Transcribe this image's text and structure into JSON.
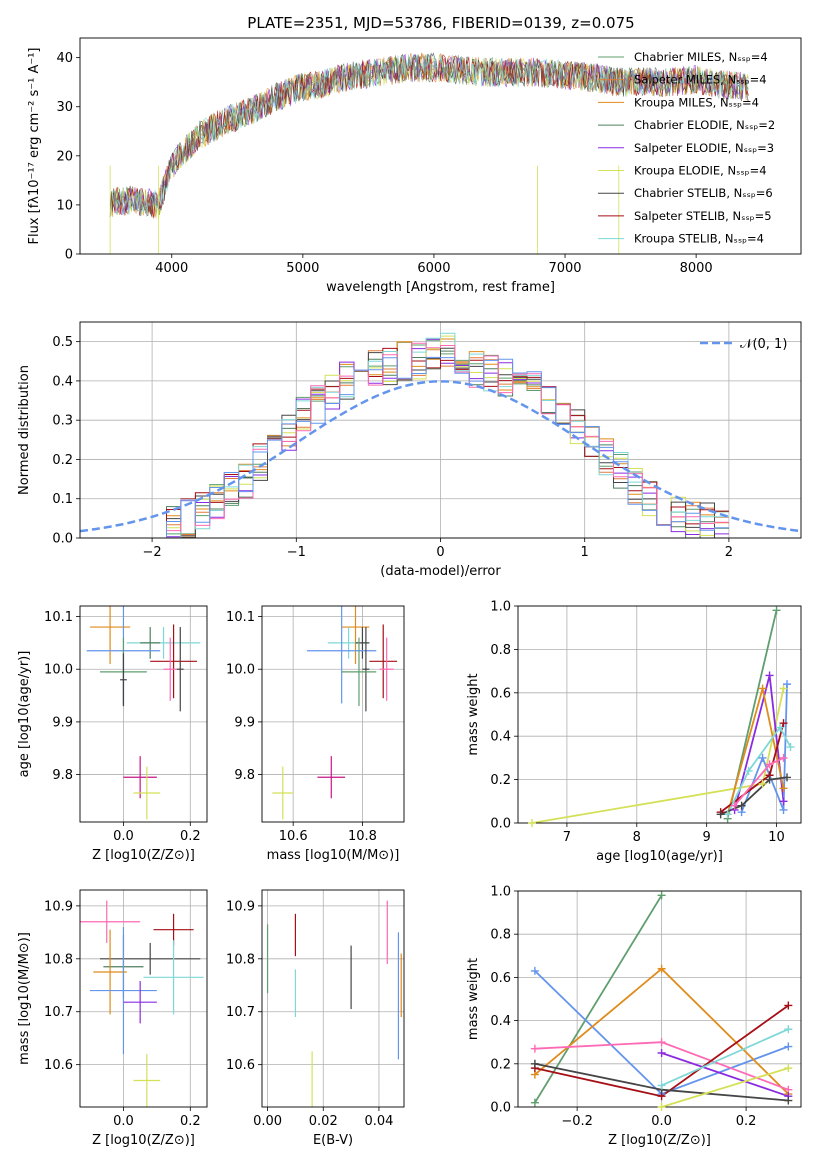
{
  "figure_title": "PLATE=2351, MJD=53786, FIBERID=0139, z=0.075",
  "series_colors": [
    "#5f9e6e",
    "#e07b39",
    "#e08b1a",
    "#4f7f5e",
    "#8a2be2",
    "#d4e157",
    "#454545",
    "#a50f15",
    "#7fd7d7",
    "#ff69b4",
    "#6495ed"
  ],
  "chart_data": [
    {
      "type": "line",
      "name": "spectrum",
      "xlabel": "wavelength [Angstrom, rest frame]",
      "ylabel": "Flux [fλ10⁻¹⁷ erg cm⁻² s⁻¹ A⁻¹]",
      "xlim": [
        3300,
        8800
      ],
      "ylim": [
        0,
        44
      ],
      "xticks": [
        4000,
        5000,
        6000,
        7000,
        8000
      ],
      "yticks": [
        0,
        10,
        20,
        30,
        40
      ],
      "grid": false,
      "legend_position": "upper right",
      "continuum": {
        "x": [
          3530,
          3700,
          3900,
          4000,
          4200,
          4400,
          4600,
          4800,
          5000,
          5200,
          5400,
          5600,
          5800,
          6000,
          6200,
          6400,
          6600,
          6800,
          7000,
          7200,
          7400,
          7600,
          7800,
          8000,
          8200,
          8400
        ],
        "y": [
          10.5,
          11,
          10,
          18,
          24,
          27,
          29,
          32,
          34,
          35,
          36.5,
          37,
          38,
          38,
          37.5,
          37,
          37,
          37,
          36.5,
          36,
          35,
          35,
          35,
          35.5,
          34.5,
          34
        ]
      },
      "series": [
        {
          "name": "Chabrier MILES, N_SSP=4",
          "color": "#5f9e6e"
        },
        {
          "name": "Salpeter MILES, N_SSP=4",
          "color": "#e07b39"
        },
        {
          "name": "Kroupa MILES, N_SSP=4",
          "color": "#e08b1a"
        },
        {
          "name": "Chabrier ELODIE, N_SSP=2",
          "color": "#4f7f5e"
        },
        {
          "name": "Salpeter ELODIE, N_SSP=3",
          "color": "#8a2be2"
        },
        {
          "name": "Kroupa ELODIE, N_SSP=4",
          "color": "#d4e157"
        },
        {
          "name": "Chabrier STELIB, N_SSP=6",
          "color": "#454545"
        },
        {
          "name": "Salpeter STELIB, N_SSP=5",
          "color": "#a50f15"
        },
        {
          "name": "Kroupa STELIB, N_SSP=4",
          "color": "#7fd7d7"
        }
      ]
    },
    {
      "type": "histogram",
      "name": "residuals",
      "xlabel": "(data-model)/error",
      "ylabel": "Normed distribution",
      "xlim": [
        -2.5,
        2.5
      ],
      "ylim": [
        0,
        0.55
      ],
      "xticks": [
        -2,
        -1,
        0,
        1,
        2
      ],
      "yticks": [
        0.0,
        0.1,
        0.2,
        0.3,
        0.4,
        0.5
      ],
      "grid": true,
      "bin_width": 0.1,
      "legend": "N(0,1)",
      "legend_position": "upper right",
      "reference_curve": "gaussian N(0,1)",
      "envelope": [
        0.03,
        0.04,
        0.05,
        0.07,
        0.09,
        0.12,
        0.15,
        0.19,
        0.23,
        0.27,
        0.31,
        0.34,
        0.37,
        0.4,
        0.42,
        0.43,
        0.44,
        0.45,
        0.45,
        0.46,
        0.48,
        0.44,
        0.43,
        0.42,
        0.41,
        0.4,
        0.38,
        0.36,
        0.32,
        0.28,
        0.25,
        0.21,
        0.17,
        0.13,
        0.1,
        0.08,
        0.06,
        0.05,
        0.04,
        0.03
      ]
    },
    {
      "type": "errorbar",
      "name": "age-vs-Z",
      "xlabel": "Z [log10(Z/Z⊙)]",
      "ylabel": "age  [log10(age/yr)]",
      "xlim": [
        -0.13,
        0.25
      ],
      "ylim": [
        9.71,
        10.12
      ],
      "xticks": [
        0.0,
        0.2
      ],
      "yticks": [
        9.8,
        9.9,
        10.0,
        10.1
      ],
      "grid": true,
      "points": [
        {
          "x": -0.04,
          "y": 10.08,
          "xerr": 0.06,
          "yerr": 0.07,
          "color": "#e08b1a"
        },
        {
          "x": 0.12,
          "y": 10.05,
          "xerr": 0.11,
          "yerr": 0.03,
          "color": "#7fd7d7"
        },
        {
          "x": 0.08,
          "y": 10.05,
          "xerr": 0.03,
          "yerr": 0.03,
          "color": "#4f7f5e"
        },
        {
          "x": 0.0,
          "y": 10.035,
          "xerr": 0.11,
          "yerr": 0.1,
          "color": "#6495ed"
        },
        {
          "x": 0.15,
          "y": 10.015,
          "xerr": 0.07,
          "yerr": 0.07,
          "color": "#a50f15"
        },
        {
          "x": 0.14,
          "y": 10.0,
          "xerr": 0.02,
          "yerr": 0.06,
          "color": "#ff69b4"
        },
        {
          "x": 0.17,
          "y": 10.0,
          "xerr": 0.01,
          "yerr": 0.08,
          "color": "#454545"
        },
        {
          "x": 0.0,
          "y": 9.995,
          "xerr": 0.07,
          "yerr": 0.065,
          "color": "#5f9e6e"
        },
        {
          "x": 0.0,
          "y": 9.98,
          "xerr": 0.01,
          "yerr": 0.05,
          "color": "#454545"
        },
        {
          "x": 0.05,
          "y": 9.795,
          "xerr": 0.05,
          "yerr": 0.04,
          "color": "#c71585"
        },
        {
          "x": 0.07,
          "y": 9.765,
          "xerr": 0.04,
          "yerr": 0.05,
          "color": "#d4e157"
        }
      ]
    },
    {
      "type": "errorbar",
      "name": "age-vs-mass",
      "xlabel": "mass [log10(M/M⊙)]",
      "ylabel": "",
      "xlim": [
        10.51,
        10.92
      ],
      "ylim": [
        9.71,
        10.12
      ],
      "xticks": [
        10.6,
        10.8
      ],
      "yticks": [
        9.8,
        9.9,
        10.0,
        10.1
      ],
      "grid": true,
      "points": [
        {
          "x": 10.78,
          "y": 10.08,
          "xerr": 0.04,
          "yerr": 0.07,
          "color": "#e08b1a"
        },
        {
          "x": 10.76,
          "y": 10.05,
          "xerr": 0.06,
          "yerr": 0.03,
          "color": "#7fd7d7"
        },
        {
          "x": 10.8,
          "y": 10.05,
          "xerr": 0.02,
          "yerr": 0.03,
          "color": "#454545"
        },
        {
          "x": 10.74,
          "y": 10.035,
          "xerr": 0.1,
          "yerr": 0.1,
          "color": "#6495ed"
        },
        {
          "x": 10.86,
          "y": 10.015,
          "xerr": 0.04,
          "yerr": 0.07,
          "color": "#a50f15"
        },
        {
          "x": 10.87,
          "y": 10.0,
          "xerr": 0.02,
          "yerr": 0.06,
          "color": "#ff69b4"
        },
        {
          "x": 10.81,
          "y": 10.0,
          "xerr": 0.01,
          "yerr": 0.08,
          "color": "#454545"
        },
        {
          "x": 10.79,
          "y": 9.995,
          "xerr": 0.05,
          "yerr": 0.065,
          "color": "#5f9e6e"
        },
        {
          "x": 10.71,
          "y": 9.795,
          "xerr": 0.04,
          "yerr": 0.04,
          "color": "#c71585"
        },
        {
          "x": 10.57,
          "y": 9.765,
          "xerr": 0.03,
          "yerr": 0.05,
          "color": "#d4e157"
        }
      ]
    },
    {
      "type": "line",
      "name": "mass-weight-vs-age",
      "xlabel": "age  [log10(age/yr)]",
      "ylabel": "mass weight",
      "xlim": [
        6.3,
        10.35
      ],
      "ylim": [
        0,
        1.0
      ],
      "xticks": [
        7,
        8,
        9,
        10
      ],
      "yticks": [
        0.0,
        0.2,
        0.4,
        0.6,
        0.8,
        1.0
      ],
      "grid": true,
      "series": [
        {
          "color": "#5f9e6e",
          "x": [
            9.3,
            10.0
          ],
          "y": [
            0.02,
            0.98
          ]
        },
        {
          "color": "#d4e157",
          "x": [
            6.5,
            9.8,
            10.1
          ],
          "y": [
            0.0,
            0.18,
            0.62
          ]
        },
        {
          "color": "#8a2be2",
          "x": [
            9.4,
            9.9,
            10.1
          ],
          "y": [
            0.06,
            0.68,
            0.1
          ]
        },
        {
          "color": "#e08b1a",
          "x": [
            9.3,
            9.8,
            10.1
          ],
          "y": [
            0.04,
            0.62,
            0.16
          ]
        },
        {
          "color": "#6495ed",
          "x": [
            9.5,
            9.8,
            10.1,
            10.15
          ],
          "y": [
            0.05,
            0.3,
            0.06,
            0.64
          ]
        },
        {
          "color": "#a50f15",
          "x": [
            9.2,
            9.9,
            10.1
          ],
          "y": [
            0.05,
            0.22,
            0.46
          ]
        },
        {
          "color": "#7fd7d7",
          "x": [
            9.3,
            9.6,
            10.05,
            10.2
          ],
          "y": [
            0.04,
            0.24,
            0.44,
            0.35
          ]
        },
        {
          "color": "#ff69b4",
          "x": [
            9.4,
            9.9,
            10.1
          ],
          "y": [
            0.08,
            0.27,
            0.3
          ]
        },
        {
          "color": "#454545",
          "x": [
            9.2,
            9.5,
            9.9,
            10.15
          ],
          "y": [
            0.04,
            0.08,
            0.2,
            0.21
          ]
        }
      ]
    },
    {
      "type": "errorbar",
      "name": "mass-vs-Z",
      "xlabel": "Z [log10(Z/Z⊙)]",
      "ylabel": "mass [log10(M/M⊙)]",
      "xlim": [
        -0.13,
        0.25
      ],
      "ylim": [
        10.52,
        10.93
      ],
      "xticks": [
        0.0,
        0.2
      ],
      "yticks": [
        10.6,
        10.7,
        10.8,
        10.9
      ],
      "grid": true,
      "points": [
        {
          "x": -0.05,
          "y": 10.87,
          "xerr": 0.1,
          "yerr": 0.04,
          "color": "#ff69b4"
        },
        {
          "x": 0.15,
          "y": 10.855,
          "xerr": 0.06,
          "yerr": 0.03,
          "color": "#a50f15"
        },
        {
          "x": 0.08,
          "y": 10.8,
          "xerr": 0.15,
          "yerr": 0.03,
          "color": "#454545"
        },
        {
          "x": 0.0,
          "y": 10.785,
          "xerr": 0.06,
          "yerr": 0.06,
          "color": "#4f7f5e"
        },
        {
          "x": -0.04,
          "y": 10.775,
          "xerr": 0.05,
          "yerr": 0.08,
          "color": "#e08b1a"
        },
        {
          "x": 0.15,
          "y": 10.765,
          "xerr": 0.09,
          "yerr": 0.07,
          "color": "#7fd7d7"
        },
        {
          "x": 0.0,
          "y": 10.74,
          "xerr": 0.1,
          "yerr": 0.12,
          "color": "#6495ed"
        },
        {
          "x": 0.05,
          "y": 10.718,
          "xerr": 0.05,
          "yerr": 0.04,
          "color": "#8a2be2"
        },
        {
          "x": 0.07,
          "y": 10.57,
          "xerr": 0.04,
          "yerr": 0.05,
          "color": "#d4e157"
        }
      ]
    },
    {
      "type": "errorbar",
      "name": "mass-vs-ebv",
      "xlabel": "E(B-V)",
      "ylabel": "",
      "xlim": [
        -0.002,
        0.049
      ],
      "ylim": [
        10.52,
        10.93
      ],
      "xticks": [
        0.0,
        0.02,
        0.04
      ],
      "yticks": [
        10.6,
        10.7,
        10.8,
        10.9
      ],
      "grid": true,
      "points": [
        {
          "x": 0.0,
          "y": 10.8,
          "xerr": 0,
          "yerr": 0.065,
          "color": "#5f9e6e"
        },
        {
          "x": 0.01,
          "y": 10.845,
          "xerr": 0,
          "yerr": 0.04,
          "color": "#a50f15"
        },
        {
          "x": 0.01,
          "y": 10.735,
          "xerr": 0,
          "yerr": 0.045,
          "color": "#7fd7d7"
        },
        {
          "x": 0.016,
          "y": 10.57,
          "xerr": 0,
          "yerr": 0.055,
          "color": "#d4e157"
        },
        {
          "x": 0.03,
          "y": 10.765,
          "xerr": 0,
          "yerr": 0.06,
          "color": "#454545"
        },
        {
          "x": 0.043,
          "y": 10.85,
          "xerr": 0,
          "yerr": 0.06,
          "color": "#ff69b4"
        },
        {
          "x": 0.047,
          "y": 10.73,
          "xerr": 0,
          "yerr": 0.12,
          "color": "#6495ed"
        },
        {
          "x": 0.048,
          "y": 10.75,
          "xerr": 0,
          "yerr": 0.06,
          "color": "#e08b1a"
        }
      ]
    },
    {
      "type": "line",
      "name": "mass-weight-vs-Z",
      "xlabel": "Z [log10(Z/Z⊙)]",
      "ylabel": "mass weight",
      "xlim": [
        -0.34,
        0.33
      ],
      "ylim": [
        0,
        1.0
      ],
      "xticks": [
        -0.2,
        0.0,
        0.2
      ],
      "yticks": [
        0.0,
        0.2,
        0.4,
        0.6,
        0.8,
        1.0
      ],
      "grid": true,
      "series": [
        {
          "color": "#5f9e6e",
          "x": [
            -0.3,
            0.0
          ],
          "y": [
            0.02,
            0.98
          ]
        },
        {
          "color": "#6495ed",
          "x": [
            -0.3,
            0.0,
            0.3
          ],
          "y": [
            0.63,
            0.06,
            0.28
          ]
        },
        {
          "color": "#e08b1a",
          "x": [
            -0.3,
            0.0,
            0.3
          ],
          "y": [
            0.15,
            0.64,
            0.06
          ]
        },
        {
          "color": "#ff69b4",
          "x": [
            -0.3,
            0.0,
            0.3
          ],
          "y": [
            0.27,
            0.3,
            0.08
          ]
        },
        {
          "color": "#8a2be2",
          "x": [
            0.0,
            0.3
          ],
          "y": [
            0.25,
            0.05
          ]
        },
        {
          "color": "#a50f15",
          "x": [
            -0.3,
            0.0,
            0.3
          ],
          "y": [
            0.18,
            0.05,
            0.47
          ]
        },
        {
          "color": "#454545",
          "x": [
            -0.3,
            0.0,
            0.3
          ],
          "y": [
            0.2,
            0.08,
            0.03
          ]
        },
        {
          "color": "#7fd7d7",
          "x": [
            0.0,
            0.3
          ],
          "y": [
            0.1,
            0.36
          ]
        },
        {
          "color": "#d4e157",
          "x": [
            0.0,
            0.3
          ],
          "y": [
            0.0,
            0.18
          ]
        }
      ]
    }
  ]
}
